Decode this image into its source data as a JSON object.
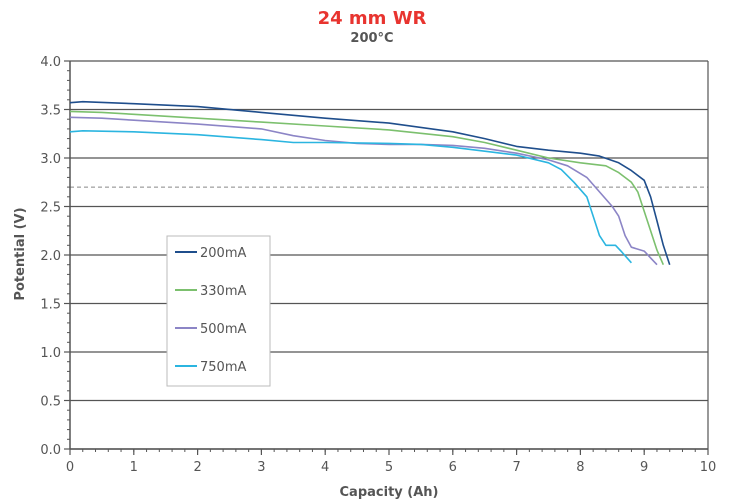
{
  "chart_data": {
    "type": "line",
    "title": "24 mm WR",
    "subtitle": "200°C",
    "xlabel": "Capacity (Ah)",
    "ylabel": "Potential (V)",
    "xlim": [
      0,
      10
    ],
    "ylim": [
      0.0,
      4.0
    ],
    "x_ticks": [
      "0",
      "1",
      "2",
      "3",
      "4",
      "5",
      "6",
      "7",
      "8",
      "9",
      "10"
    ],
    "y_ticks": [
      "0.0",
      "0.5",
      "1.0",
      "1.5",
      "2.0",
      "2.5",
      "3.0",
      "3.5",
      "4.0"
    ],
    "grid": "horizontal",
    "legend_position": "lower-left",
    "reference_line": {
      "y": 2.7,
      "style": "dashed"
    },
    "colors": {
      "title": "#e8342f",
      "grid": "#555555",
      "axis": "#555555",
      "reference": "#888888"
    },
    "series": [
      {
        "name": "200mA",
        "color": "#1f4e8c",
        "points": [
          [
            0,
            3.57
          ],
          [
            0.2,
            3.58
          ],
          [
            1,
            3.56
          ],
          [
            2,
            3.53
          ],
          [
            3,
            3.47
          ],
          [
            4,
            3.41
          ],
          [
            5,
            3.36
          ],
          [
            6,
            3.27
          ],
          [
            6.5,
            3.2
          ],
          [
            7,
            3.12
          ],
          [
            7.5,
            3.08
          ],
          [
            8,
            3.05
          ],
          [
            8.3,
            3.02
          ],
          [
            8.6,
            2.95
          ],
          [
            8.8,
            2.87
          ],
          [
            9.0,
            2.77
          ],
          [
            9.1,
            2.6
          ],
          [
            9.2,
            2.35
          ],
          [
            9.3,
            2.1
          ],
          [
            9.4,
            1.9
          ]
        ]
      },
      {
        "name": "330mA",
        "color": "#7cc06e",
        "points": [
          [
            0,
            3.48
          ],
          [
            0.5,
            3.47
          ],
          [
            1,
            3.45
          ],
          [
            2,
            3.41
          ],
          [
            3,
            3.37
          ],
          [
            4,
            3.33
          ],
          [
            5,
            3.29
          ],
          [
            6,
            3.22
          ],
          [
            6.5,
            3.16
          ],
          [
            7,
            3.08
          ],
          [
            7.5,
            3.0
          ],
          [
            8,
            2.95
          ],
          [
            8.4,
            2.92
          ],
          [
            8.6,
            2.85
          ],
          [
            8.8,
            2.75
          ],
          [
            8.9,
            2.65
          ],
          [
            9.0,
            2.45
          ],
          [
            9.1,
            2.25
          ],
          [
            9.2,
            2.05
          ],
          [
            9.3,
            1.9
          ]
        ]
      },
      {
        "name": "500mA",
        "color": "#8c85c6",
        "points": [
          [
            0,
            3.42
          ],
          [
            0.5,
            3.41
          ],
          [
            1,
            3.39
          ],
          [
            2,
            3.35
          ],
          [
            3,
            3.3
          ],
          [
            3.5,
            3.23
          ],
          [
            4,
            3.18
          ],
          [
            4.5,
            3.15
          ],
          [
            5,
            3.14
          ],
          [
            5.5,
            3.14
          ],
          [
            6,
            3.13
          ],
          [
            6.5,
            3.1
          ],
          [
            7,
            3.05
          ],
          [
            7.5,
            2.98
          ],
          [
            7.8,
            2.92
          ],
          [
            8.1,
            2.8
          ],
          [
            8.3,
            2.65
          ],
          [
            8.5,
            2.5
          ],
          [
            8.6,
            2.4
          ],
          [
            8.7,
            2.2
          ],
          [
            8.8,
            2.08
          ],
          [
            9.0,
            2.04
          ],
          [
            9.1,
            1.97
          ],
          [
            9.2,
            1.9
          ]
        ]
      },
      {
        "name": "750mA",
        "color": "#2bb5e0",
        "points": [
          [
            0,
            3.27
          ],
          [
            0.2,
            3.28
          ],
          [
            1,
            3.27
          ],
          [
            2,
            3.24
          ],
          [
            3,
            3.19
          ],
          [
            3.5,
            3.16
          ],
          [
            4,
            3.16
          ],
          [
            5,
            3.15
          ],
          [
            5.5,
            3.14
          ],
          [
            6,
            3.11
          ],
          [
            6.5,
            3.07
          ],
          [
            7,
            3.03
          ],
          [
            7.5,
            2.95
          ],
          [
            7.7,
            2.88
          ],
          [
            7.9,
            2.75
          ],
          [
            8.1,
            2.6
          ],
          [
            8.2,
            2.4
          ],
          [
            8.3,
            2.2
          ],
          [
            8.4,
            2.1
          ],
          [
            8.55,
            2.1
          ],
          [
            8.65,
            2.03
          ],
          [
            8.8,
            1.92
          ]
        ]
      }
    ]
  }
}
